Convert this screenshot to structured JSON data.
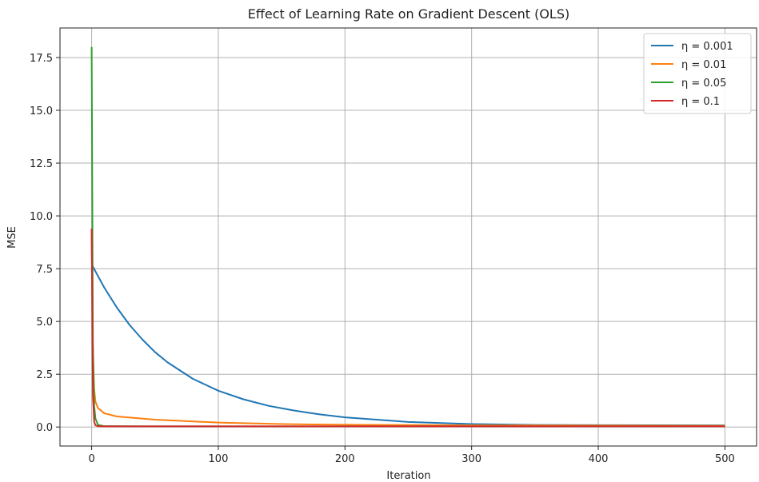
{
  "chart_data": {
    "type": "line",
    "title": "Effect of Learning Rate on Gradient Descent (OLS)",
    "xlabel": "Iteration",
    "ylabel": "MSE",
    "xlim": [
      -25,
      525
    ],
    "ylim": [
      -0.9,
      18.9
    ],
    "xticks": [
      0,
      100,
      200,
      300,
      400,
      500
    ],
    "xtick_labels": [
      "0",
      "100",
      "200",
      "300",
      "400",
      "500"
    ],
    "yticks": [
      0,
      2.5,
      5,
      7.5,
      10,
      12.5,
      15,
      17.5
    ],
    "ytick_labels": [
      "0.0",
      "2.5",
      "5.0",
      "7.5",
      "10.0",
      "12.5",
      "15.0",
      "17.5"
    ],
    "grid": true,
    "legend_position": "top-right",
    "series": [
      {
        "name": "η = 0.001",
        "color": "#1f77b4",
        "x": [
          0,
          1,
          5,
          10,
          20,
          30,
          40,
          50,
          60,
          80,
          100,
          120,
          140,
          160,
          180,
          200,
          250,
          300,
          350,
          400,
          450,
          500
        ],
        "y": [
          7.7,
          7.6,
          7.15,
          6.6,
          5.65,
          4.83,
          4.15,
          3.55,
          3.06,
          2.28,
          1.72,
          1.31,
          1.0,
          0.78,
          0.6,
          0.46,
          0.24,
          0.14,
          0.1,
          0.09,
          0.085,
          0.08
        ]
      },
      {
        "name": "η = 0.01",
        "color": "#ff7f0e",
        "x": [
          0,
          1,
          2,
          3,
          5,
          10,
          20,
          50,
          100,
          150,
          200,
          300,
          400,
          500
        ],
        "y": [
          9.2,
          3.5,
          1.8,
          1.2,
          0.9,
          0.65,
          0.5,
          0.35,
          0.21,
          0.14,
          0.11,
          0.08,
          0.07,
          0.06
        ]
      },
      {
        "name": "η = 0.05",
        "color": "#2ca02c",
        "x": [
          0,
          1,
          2,
          3,
          5,
          10,
          50,
          100,
          500
        ],
        "y": [
          18.0,
          4.0,
          1.0,
          0.4,
          0.1,
          0.04,
          0.03,
          0.03,
          0.03
        ]
      },
      {
        "name": "η = 0.1",
        "color": "#d62728",
        "x": [
          0,
          1,
          2,
          3,
          5,
          10,
          50,
          100,
          500
        ],
        "y": [
          9.4,
          1.5,
          0.25,
          0.08,
          0.04,
          0.03,
          0.03,
          0.03,
          0.03
        ]
      }
    ]
  }
}
